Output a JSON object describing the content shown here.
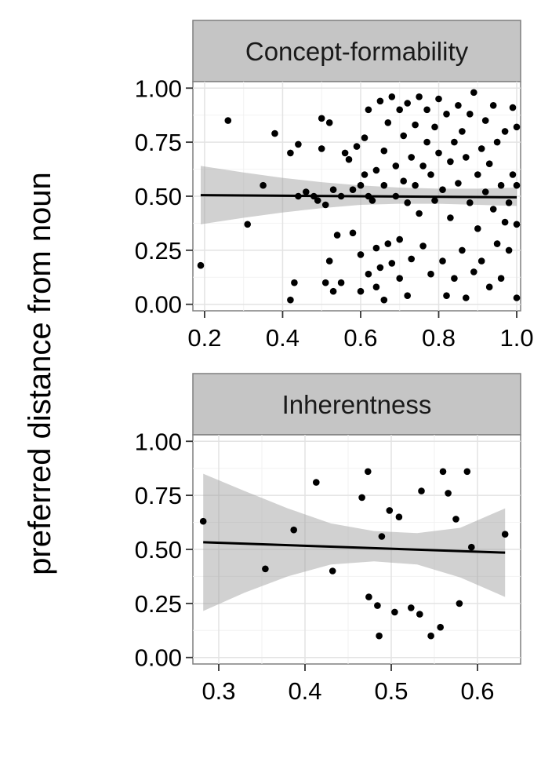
{
  "ylabel": "preferred distance from noun",
  "chart_data": [
    {
      "type": "scatter",
      "panel": "Concept-formability",
      "xlabel": "",
      "ylabel": "preferred distance from noun",
      "xlim": [
        0.17,
        1.01
      ],
      "ylim": [
        -0.03,
        1.03
      ],
      "xticks": [
        "0.2",
        "0.4",
        "0.6",
        "0.8",
        "1.0"
      ],
      "yticks": [
        "0.00",
        "0.25",
        "0.50",
        "0.75",
        "1.00"
      ],
      "grid": true,
      "smooth": {
        "method": "linear",
        "line": [
          [
            0.19,
            0.505
          ],
          [
            1.0,
            0.495
          ]
        ]
      },
      "band": {
        "x": [
          0.19,
          0.3,
          0.4,
          0.5,
          0.6,
          0.7,
          0.8,
          0.9,
          1.0
        ],
        "upper": [
          0.64,
          0.61,
          0.585,
          0.565,
          0.55,
          0.54,
          0.535,
          0.535,
          0.54
        ],
        "lower": [
          0.37,
          0.4,
          0.425,
          0.445,
          0.46,
          0.465,
          0.465,
          0.46,
          0.455
        ]
      },
      "points": [
        [
          0.19,
          0.18
        ],
        [
          0.26,
          0.85
        ],
        [
          0.31,
          0.37
        ],
        [
          0.35,
          0.55
        ],
        [
          0.38,
          0.79
        ],
        [
          0.42,
          0.02
        ],
        [
          0.42,
          0.7
        ],
        [
          0.43,
          0.1
        ],
        [
          0.44,
          0.74
        ],
        [
          0.44,
          0.5
        ],
        [
          0.46,
          0.52
        ],
        [
          0.48,
          0.5
        ],
        [
          0.49,
          0.48
        ],
        [
          0.5,
          0.86
        ],
        [
          0.5,
          0.72
        ],
        [
          0.51,
          0.46
        ],
        [
          0.51,
          0.1
        ],
        [
          0.52,
          0.2
        ],
        [
          0.52,
          0.84
        ],
        [
          0.53,
          0.06
        ],
        [
          0.53,
          0.53
        ],
        [
          0.54,
          0.32
        ],
        [
          0.55,
          0.1
        ],
        [
          0.55,
          0.5
        ],
        [
          0.56,
          0.7
        ],
        [
          0.57,
          0.67
        ],
        [
          0.58,
          0.33
        ],
        [
          0.58,
          0.53
        ],
        [
          0.59,
          0.73
        ],
        [
          0.6,
          0.55
        ],
        [
          0.6,
          0.06
        ],
        [
          0.6,
          0.23
        ],
        [
          0.61,
          0.6
        ],
        [
          0.61,
          0.77
        ],
        [
          0.62,
          0.5
        ],
        [
          0.62,
          0.14
        ],
        [
          0.62,
          0.9
        ],
        [
          0.63,
          0.48
        ],
        [
          0.64,
          0.62
        ],
        [
          0.64,
          0.26
        ],
        [
          0.64,
          0.08
        ],
        [
          0.65,
          0.17
        ],
        [
          0.65,
          0.94
        ],
        [
          0.66,
          0.55
        ],
        [
          0.66,
          0.71
        ],
        [
          0.66,
          0.02
        ],
        [
          0.67,
          0.28
        ],
        [
          0.67,
          0.84
        ],
        [
          0.68,
          0.19
        ],
        [
          0.68,
          0.96
        ],
        [
          0.69,
          0.5
        ],
        [
          0.69,
          0.64
        ],
        [
          0.7,
          0.12
        ],
        [
          0.7,
          0.3
        ],
        [
          0.7,
          0.9
        ],
        [
          0.71,
          0.57
        ],
        [
          0.71,
          0.78
        ],
        [
          0.72,
          0.47
        ],
        [
          0.72,
          0.93
        ],
        [
          0.72,
          0.04
        ],
        [
          0.73,
          0.68
        ],
        [
          0.73,
          0.21
        ],
        [
          0.74,
          0.83
        ],
        [
          0.74,
          0.55
        ],
        [
          0.75,
          0.96
        ],
        [
          0.75,
          0.42
        ],
        [
          0.76,
          0.64
        ],
        [
          0.76,
          0.27
        ],
        [
          0.77,
          0.75
        ],
        [
          0.77,
          0.9
        ],
        [
          0.78,
          0.14
        ],
        [
          0.78,
          0.6
        ],
        [
          0.79,
          0.48
        ],
        [
          0.79,
          0.82
        ],
        [
          0.8,
          0.95
        ],
        [
          0.8,
          0.7
        ],
        [
          0.81,
          0.2
        ],
        [
          0.81,
          0.53
        ],
        [
          0.82,
          0.88
        ],
        [
          0.82,
          0.04
        ],
        [
          0.83,
          0.66
        ],
        [
          0.83,
          0.4
        ],
        [
          0.84,
          0.75
        ],
        [
          0.84,
          0.12
        ],
        [
          0.85,
          0.56
        ],
        [
          0.85,
          0.92
        ],
        [
          0.86,
          0.25
        ],
        [
          0.86,
          0.8
        ],
        [
          0.87,
          0.68
        ],
        [
          0.87,
          0.03
        ],
        [
          0.88,
          0.47
        ],
        [
          0.88,
          0.88
        ],
        [
          0.89,
          0.15
        ],
        [
          0.89,
          0.98
        ],
        [
          0.9,
          0.6
        ],
        [
          0.9,
          0.35
        ],
        [
          0.91,
          0.72
        ],
        [
          0.91,
          0.2
        ],
        [
          0.92,
          0.85
        ],
        [
          0.92,
          0.52
        ],
        [
          0.93,
          0.08
        ],
        [
          0.93,
          0.65
        ],
        [
          0.94,
          0.44
        ],
        [
          0.94,
          0.92
        ],
        [
          0.95,
          0.28
        ],
        [
          0.95,
          0.75
        ],
        [
          0.96,
          0.55
        ],
        [
          0.96,
          0.12
        ],
        [
          0.97,
          0.38
        ],
        [
          0.97,
          0.8
        ],
        [
          0.98,
          0.47
        ],
        [
          0.98,
          0.25
        ],
        [
          0.99,
          0.91
        ],
        [
          0.99,
          0.6
        ],
        [
          1.0,
          0.82
        ],
        [
          1.0,
          0.03
        ],
        [
          1.0,
          0.37
        ],
        [
          1.0,
          0.55
        ]
      ]
    },
    {
      "type": "scatter",
      "panel": "Inherentness",
      "xlabel": "",
      "ylabel": "preferred distance from noun",
      "xlim": [
        0.27,
        0.65
      ],
      "ylim": [
        -0.03,
        1.03
      ],
      "xticks": [
        "0.3",
        "0.4",
        "0.5",
        "0.6"
      ],
      "yticks": [
        "0.00",
        "0.25",
        "0.50",
        "0.75",
        "1.00"
      ],
      "grid": true,
      "smooth": {
        "method": "linear",
        "line": [
          [
            0.282,
            0.533
          ],
          [
            0.632,
            0.485
          ]
        ]
      },
      "band": {
        "x": [
          0.282,
          0.33,
          0.38,
          0.43,
          0.48,
          0.53,
          0.58,
          0.632
        ],
        "upper": [
          0.85,
          0.77,
          0.69,
          0.62,
          0.585,
          0.575,
          0.6,
          0.69
        ],
        "lower": [
          0.215,
          0.3,
          0.375,
          0.43,
          0.445,
          0.43,
          0.37,
          0.28
        ]
      },
      "points": [
        [
          0.282,
          0.63
        ],
        [
          0.354,
          0.41
        ],
        [
          0.387,
          0.59
        ],
        [
          0.413,
          0.81
        ],
        [
          0.432,
          0.4
        ],
        [
          0.466,
          0.74
        ],
        [
          0.473,
          0.86
        ],
        [
          0.474,
          0.28
        ],
        [
          0.484,
          0.24
        ],
        [
          0.486,
          0.1
        ],
        [
          0.489,
          0.56
        ],
        [
          0.498,
          0.68
        ],
        [
          0.504,
          0.21
        ],
        [
          0.509,
          0.65
        ],
        [
          0.523,
          0.23
        ],
        [
          0.533,
          0.2
        ],
        [
          0.535,
          0.77
        ],
        [
          0.546,
          0.1
        ],
        [
          0.557,
          0.14
        ],
        [
          0.56,
          0.86
        ],
        [
          0.566,
          0.76
        ],
        [
          0.575,
          0.64
        ],
        [
          0.579,
          0.25
        ],
        [
          0.588,
          0.86
        ],
        [
          0.593,
          0.51
        ],
        [
          0.632,
          0.57
        ]
      ]
    }
  ]
}
